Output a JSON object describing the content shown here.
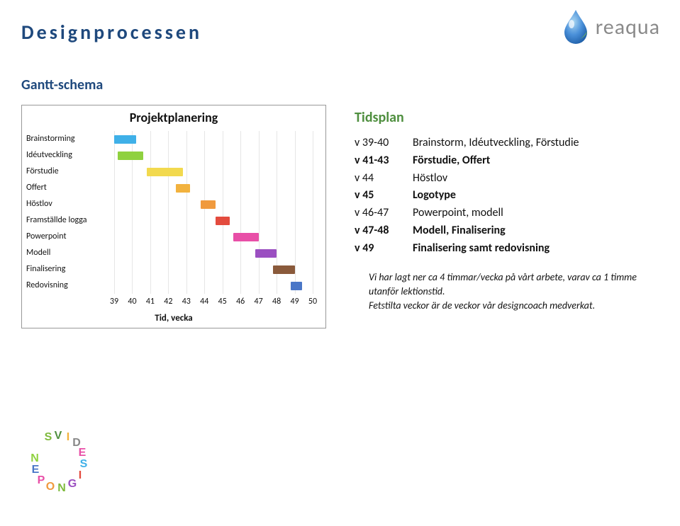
{
  "page": {
    "title": "Designprocessen",
    "section": "Gantt-schema"
  },
  "logo": {
    "text": "reaqua",
    "droplet_color_top": "#2a6bc4",
    "droplet_color_bottom": "#7fb8e6",
    "leaf_color": "#7fc14a",
    "text_color": "#8a8a8a"
  },
  "chart": {
    "type": "gantt-bar",
    "title": "Projektplanering",
    "x_title": "Tid, vecka",
    "x_ticks": [
      39,
      40,
      41,
      42,
      43,
      44,
      45,
      46,
      47,
      48,
      49,
      50
    ],
    "xlim": [
      39,
      50
    ],
    "background_color": "#ffffff",
    "grid_color": "#e6e6e6",
    "label_fontsize": 12,
    "title_fontsize": 18,
    "rows": [
      {
        "label": "Brainstorming",
        "start": 39,
        "end": 40.2,
        "color": "#3fb0e8"
      },
      {
        "label": "Idéutveckling",
        "start": 39.2,
        "end": 40.6,
        "color": "#8fd13f"
      },
      {
        "label": "Förstudie",
        "start": 40.8,
        "end": 42.8,
        "color": "#f2d94e"
      },
      {
        "label": "Offert",
        "start": 42.4,
        "end": 43.2,
        "color": "#f2b23e"
      },
      {
        "label": "Höstlov",
        "start": 43.8,
        "end": 44.6,
        "color": "#f09a3e"
      },
      {
        "label": "Framställde logga",
        "start": 44.6,
        "end": 45.4,
        "color": "#e34b3e"
      },
      {
        "label": "Powerpoint",
        "start": 45.6,
        "end": 47.0,
        "color": "#e84fa7"
      },
      {
        "label": "Modell",
        "start": 46.8,
        "end": 48.0,
        "color": "#9b4fc1"
      },
      {
        "label": "Finalisering",
        "start": 47.8,
        "end": 49.0,
        "color": "#8a5a3b"
      },
      {
        "label": "Redovisning",
        "start": 48.8,
        "end": 49.4,
        "color": "#4a76c7"
      }
    ]
  },
  "tidsplan": {
    "title": "Tidsplan",
    "title_color": "#4f8f3f",
    "rows": [
      {
        "week": "v 39-40",
        "desc": "Brainstorm, Idéutveckling, Förstudie",
        "bold": false
      },
      {
        "week": "v 41-43",
        "desc": "Förstudie, Offert",
        "bold": true
      },
      {
        "week": "v 44",
        "desc": "Höstlov",
        "bold": false
      },
      {
        "week": "v 45",
        "desc": "Logotype",
        "bold": true
      },
      {
        "week": "v 46-47",
        "desc": "Powerpoint, modell",
        "bold": false
      },
      {
        "week": "v 47-48",
        "desc": "Modell, Finalisering",
        "bold": true
      },
      {
        "week": "v 49",
        "desc": "Finalisering samt redovisning",
        "bold": true
      }
    ],
    "note1": "Vi har lagt ner ca 4 timmar/vecka på vårt arbete, varav ca 1 timme utanför lektionstid.",
    "note2": "Fetstilta veckor är de veckor vår designcoach medverkat."
  },
  "svid": {
    "colors": {
      "S": "#7fba3d",
      "V": "#4f8f3f",
      "I": "#f2b23e",
      "D": "#888888",
      "E": "#e84fa7",
      "S2": "#3fb0e8",
      "I2": "#e34b3e",
      "G": "#9b4fc1",
      "N": "#f09a3e",
      "O": "#8fd13f",
      "P": "#e84fa7",
      "E2": "#4a76c7",
      "N2": "#7fba3d"
    }
  }
}
